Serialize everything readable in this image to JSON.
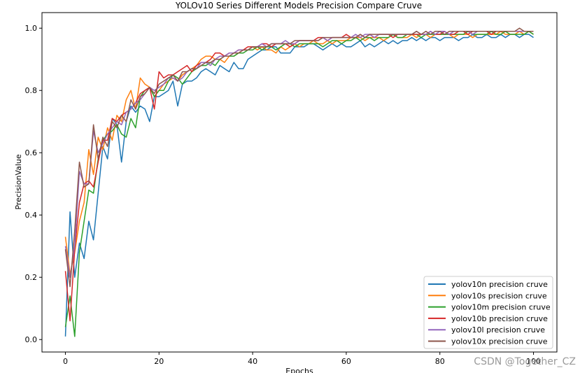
{
  "chart_data": {
    "type": "line",
    "title": "YOLOv10 Series Different Models Precision Compare Cruve",
    "xlabel": "Epochs",
    "ylabel": "PrecisionValue",
    "xlim": [
      -5,
      105
    ],
    "ylim": [
      -0.04,
      1.05
    ],
    "xticks": [
      0,
      20,
      40,
      60,
      80,
      100
    ],
    "yticks": [
      0.0,
      0.2,
      0.4,
      0.6,
      0.8,
      1.0
    ],
    "grid": false,
    "legend_position": "lower-right",
    "x": [
      0,
      1,
      2,
      3,
      4,
      5,
      6,
      7,
      8,
      9,
      10,
      11,
      12,
      13,
      14,
      15,
      16,
      17,
      18,
      19,
      20,
      21,
      22,
      23,
      24,
      25,
      26,
      27,
      28,
      29,
      30,
      31,
      32,
      33,
      34,
      35,
      36,
      37,
      38,
      39,
      40,
      41,
      42,
      43,
      44,
      45,
      46,
      47,
      48,
      49,
      50,
      51,
      52,
      53,
      54,
      55,
      56,
      57,
      58,
      59,
      60,
      61,
      62,
      63,
      64,
      65,
      66,
      67,
      68,
      69,
      70,
      71,
      72,
      73,
      74,
      75,
      76,
      77,
      78,
      79,
      80,
      81,
      82,
      83,
      84,
      85,
      86,
      87,
      88,
      89,
      90,
      91,
      92,
      93,
      94,
      95,
      96,
      97,
      98,
      99,
      100
    ],
    "series": [
      {
        "name": "yolov10n precision cruve",
        "color": "#1f77b4",
        "values": [
          0.01,
          0.41,
          0.2,
          0.31,
          0.26,
          0.38,
          0.32,
          0.47,
          0.62,
          0.58,
          0.71,
          0.69,
          0.57,
          0.7,
          0.75,
          0.73,
          0.75,
          0.74,
          0.7,
          0.78,
          0.78,
          0.79,
          0.8,
          0.83,
          0.75,
          0.82,
          0.83,
          0.83,
          0.84,
          0.86,
          0.87,
          0.86,
          0.85,
          0.88,
          0.87,
          0.86,
          0.89,
          0.87,
          0.87,
          0.9,
          0.91,
          0.92,
          0.93,
          0.93,
          0.94,
          0.94,
          0.92,
          0.92,
          0.92,
          0.94,
          0.94,
          0.94,
          0.95,
          0.95,
          0.94,
          0.93,
          0.94,
          0.95,
          0.94,
          0.95,
          0.94,
          0.94,
          0.95,
          0.96,
          0.94,
          0.95,
          0.94,
          0.95,
          0.96,
          0.95,
          0.96,
          0.95,
          0.96,
          0.96,
          0.97,
          0.96,
          0.97,
          0.96,
          0.97,
          0.97,
          0.96,
          0.97,
          0.97,
          0.97,
          0.96,
          0.97,
          0.97,
          0.98,
          0.97,
          0.97,
          0.98,
          0.97,
          0.97,
          0.98,
          0.97,
          0.98,
          0.98,
          0.97,
          0.98,
          0.98,
          0.97
        ]
      },
      {
        "name": "yolov10s precision cruve",
        "color": "#ff7f0e",
        "values": [
          0.33,
          0.21,
          0.28,
          0.38,
          0.44,
          0.61,
          0.53,
          0.65,
          0.61,
          0.68,
          0.64,
          0.72,
          0.7,
          0.77,
          0.8,
          0.74,
          0.84,
          0.82,
          0.81,
          0.78,
          0.8,
          0.82,
          0.83,
          0.84,
          0.83,
          0.85,
          0.86,
          0.87,
          0.88,
          0.9,
          0.91,
          0.91,
          0.9,
          0.9,
          0.89,
          0.91,
          0.91,
          0.92,
          0.93,
          0.93,
          0.94,
          0.93,
          0.94,
          0.93,
          0.93,
          0.92,
          0.94,
          0.93,
          0.94,
          0.95,
          0.94,
          0.95,
          0.95,
          0.96,
          0.95,
          0.95,
          0.96,
          0.95,
          0.96,
          0.96,
          0.96,
          0.97,
          0.97,
          0.97,
          0.96,
          0.97,
          0.97,
          0.97,
          0.96,
          0.97,
          0.98,
          0.97,
          0.97,
          0.97,
          0.98,
          0.97,
          0.98,
          0.98,
          0.97,
          0.98,
          0.98,
          0.98,
          0.98,
          0.97,
          0.98,
          0.98,
          0.98,
          0.97,
          0.98,
          0.98,
          0.98,
          0.98,
          0.98,
          0.99,
          0.98,
          0.98,
          0.98,
          0.99,
          0.98,
          0.99,
          0.98
        ]
      },
      {
        "name": "yolov10m precision cruve",
        "color": "#2ca02c",
        "values": [
          0.04,
          0.14,
          0.01,
          0.28,
          0.38,
          0.48,
          0.47,
          0.58,
          0.64,
          0.66,
          0.67,
          0.69,
          0.66,
          0.65,
          0.71,
          0.68,
          0.78,
          0.8,
          0.81,
          0.78,
          0.8,
          0.8,
          0.83,
          0.85,
          0.84,
          0.82,
          0.84,
          0.86,
          0.87,
          0.88,
          0.88,
          0.89,
          0.88,
          0.9,
          0.91,
          0.91,
          0.91,
          0.92,
          0.92,
          0.93,
          0.93,
          0.94,
          0.93,
          0.94,
          0.94,
          0.93,
          0.94,
          0.95,
          0.95,
          0.94,
          0.95,
          0.95,
          0.95,
          0.95,
          0.95,
          0.94,
          0.95,
          0.96,
          0.96,
          0.95,
          0.96,
          0.96,
          0.97,
          0.96,
          0.97,
          0.97,
          0.96,
          0.97,
          0.97,
          0.97,
          0.98,
          0.97,
          0.97,
          0.98,
          0.98,
          0.98,
          0.97,
          0.98,
          0.98,
          0.98,
          0.98,
          0.98,
          0.98,
          0.98,
          0.98,
          0.98,
          0.99,
          0.98,
          0.98,
          0.98,
          0.98,
          0.99,
          0.98,
          0.98,
          0.99,
          0.98,
          0.98,
          0.98,
          0.98,
          0.99,
          0.98
        ]
      },
      {
        "name": "yolov10b precision cruve",
        "color": "#d62728",
        "values": [
          0.22,
          0.06,
          0.29,
          0.44,
          0.5,
          0.51,
          0.49,
          0.57,
          0.64,
          0.64,
          0.71,
          0.7,
          0.72,
          0.73,
          0.74,
          0.76,
          0.79,
          0.8,
          0.81,
          0.74,
          0.86,
          0.84,
          0.85,
          0.85,
          0.86,
          0.87,
          0.88,
          0.86,
          0.88,
          0.89,
          0.89,
          0.9,
          0.92,
          0.92,
          0.91,
          0.92,
          0.92,
          0.93,
          0.93,
          0.94,
          0.94,
          0.94,
          0.95,
          0.95,
          0.94,
          0.95,
          0.95,
          0.95,
          0.94,
          0.95,
          0.96,
          0.96,
          0.96,
          0.96,
          0.97,
          0.97,
          0.96,
          0.97,
          0.97,
          0.97,
          0.98,
          0.97,
          0.97,
          0.98,
          0.97,
          0.98,
          0.97,
          0.98,
          0.98,
          0.98,
          0.97,
          0.98,
          0.98,
          0.98,
          0.98,
          0.98,
          0.98,
          0.98,
          0.99,
          0.98,
          0.98,
          0.99,
          0.98,
          0.98,
          0.99,
          0.99,
          0.98,
          0.99,
          0.99,
          0.99,
          0.99,
          0.98,
          0.99,
          0.99,
          0.99,
          0.99,
          0.99,
          0.99,
          0.99,
          0.99,
          0.99
        ]
      },
      {
        "name": "yolov10l precision cruve",
        "color": "#9467bd",
        "values": [
          0.3,
          0.2,
          0.3,
          0.54,
          0.5,
          0.5,
          0.67,
          0.6,
          0.63,
          0.66,
          0.68,
          0.7,
          0.69,
          0.73,
          0.74,
          0.76,
          0.77,
          0.79,
          0.81,
          0.8,
          0.81,
          0.82,
          0.84,
          0.84,
          0.83,
          0.84,
          0.86,
          0.87,
          0.87,
          0.89,
          0.89,
          0.88,
          0.9,
          0.91,
          0.91,
          0.92,
          0.92,
          0.93,
          0.93,
          0.93,
          0.94,
          0.94,
          0.95,
          0.94,
          0.95,
          0.95,
          0.95,
          0.96,
          0.95,
          0.95,
          0.96,
          0.96,
          0.96,
          0.96,
          0.96,
          0.97,
          0.96,
          0.97,
          0.97,
          0.97,
          0.97,
          0.97,
          0.98,
          0.97,
          0.98,
          0.98,
          0.97,
          0.98,
          0.98,
          0.98,
          0.98,
          0.98,
          0.98,
          0.98,
          0.98,
          0.99,
          0.98,
          0.98,
          0.99,
          0.98,
          0.99,
          0.99,
          0.98,
          0.99,
          0.99,
          0.99,
          0.99,
          0.98,
          0.99,
          0.99,
          0.99,
          0.99,
          0.99,
          0.99,
          0.99,
          0.99,
          0.99,
          0.99,
          0.99,
          0.99,
          0.99
        ]
      },
      {
        "name": "yolov10x precision cruve",
        "color": "#8c564b",
        "values": [
          0.29,
          0.17,
          0.35,
          0.57,
          0.49,
          0.5,
          0.69,
          0.58,
          0.65,
          0.62,
          0.7,
          0.68,
          0.72,
          0.7,
          0.77,
          0.74,
          0.78,
          0.79,
          0.81,
          0.79,
          0.82,
          0.83,
          0.84,
          0.85,
          0.83,
          0.86,
          0.86,
          0.87,
          0.87,
          0.88,
          0.89,
          0.89,
          0.9,
          0.9,
          0.91,
          0.91,
          0.92,
          0.92,
          0.93,
          0.93,
          0.94,
          0.94,
          0.94,
          0.94,
          0.95,
          0.95,
          0.95,
          0.95,
          0.95,
          0.96,
          0.96,
          0.96,
          0.96,
          0.96,
          0.96,
          0.97,
          0.97,
          0.97,
          0.97,
          0.97,
          0.97,
          0.97,
          0.97,
          0.98,
          0.97,
          0.98,
          0.98,
          0.98,
          0.98,
          0.98,
          0.98,
          0.98,
          0.98,
          0.98,
          0.98,
          0.99,
          0.98,
          0.99,
          0.98,
          0.99,
          0.99,
          0.98,
          0.99,
          0.99,
          0.99,
          0.99,
          0.99,
          0.99,
          0.99,
          0.99,
          0.99,
          0.99,
          0.99,
          0.99,
          0.99,
          0.99,
          0.99,
          1.0,
          0.99,
          0.99,
          0.99
        ]
      }
    ]
  },
  "watermark": "CSDN @Together_CZ"
}
